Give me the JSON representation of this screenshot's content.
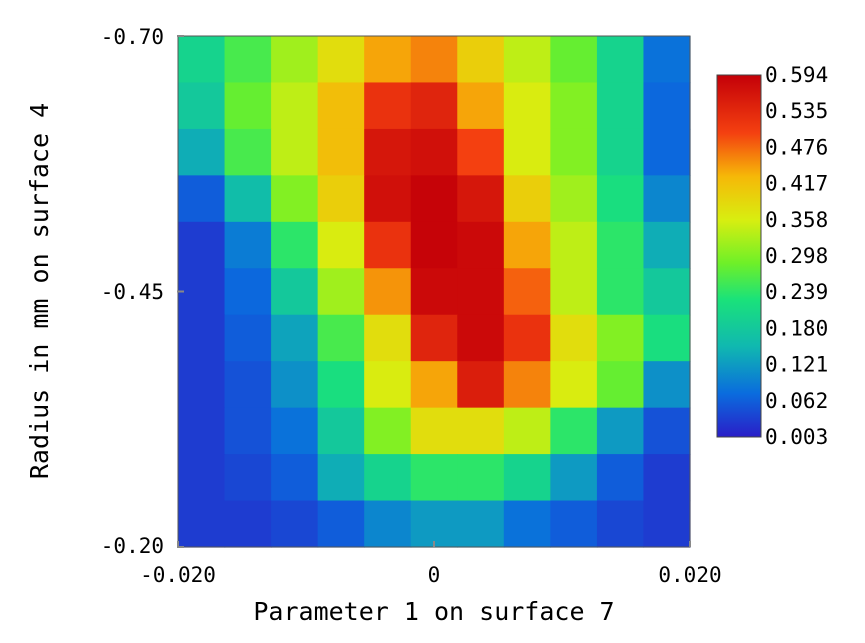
{
  "chart_data": {
    "type": "heatmap",
    "title": "",
    "xlabel": "Parameter 1 on surface 7",
    "ylabel": "Radius in mm on surface 4",
    "x_tick_labels": [
      "-0.020",
      "0",
      "0.020"
    ],
    "y_tick_labels": [
      "-0.70",
      "-0.45",
      "-0.20"
    ],
    "xlim": [
      -0.02,
      0.02
    ],
    "ylim": [
      -0.7,
      -0.2
    ],
    "colorbar_labels": [
      "0.594",
      "0.535",
      "0.476",
      "0.417",
      "0.358",
      "0.298",
      "0.239",
      "0.180",
      "0.121",
      "0.062",
      "0.003"
    ],
    "colorbar_range": [
      0.003,
      0.594
    ],
    "colormap": "rainbow (blue-green-yellow-red)",
    "legend_position": "right",
    "grid": false,
    "rows": 11,
    "cols": 11,
    "values": [
      [
        0.2,
        0.26,
        0.32,
        0.38,
        0.44,
        0.46,
        0.4,
        0.34,
        0.28,
        0.2,
        0.08
      ],
      [
        0.18,
        0.28,
        0.34,
        0.42,
        0.52,
        0.54,
        0.44,
        0.36,
        0.3,
        0.2,
        0.07
      ],
      [
        0.14,
        0.26,
        0.34,
        0.42,
        0.56,
        0.57,
        0.5,
        0.36,
        0.3,
        0.2,
        0.07
      ],
      [
        0.06,
        0.16,
        0.3,
        0.4,
        0.57,
        0.59,
        0.56,
        0.4,
        0.32,
        0.22,
        0.1
      ],
      [
        0.03,
        0.09,
        0.24,
        0.36,
        0.52,
        0.59,
        0.58,
        0.44,
        0.34,
        0.24,
        0.14
      ],
      [
        0.03,
        0.07,
        0.18,
        0.32,
        0.45,
        0.58,
        0.58,
        0.48,
        0.34,
        0.24,
        0.18
      ],
      [
        0.03,
        0.06,
        0.13,
        0.26,
        0.38,
        0.54,
        0.58,
        0.52,
        0.38,
        0.3,
        0.22
      ],
      [
        0.03,
        0.05,
        0.11,
        0.22,
        0.36,
        0.44,
        0.55,
        0.46,
        0.36,
        0.28,
        0.11
      ],
      [
        0.03,
        0.05,
        0.08,
        0.18,
        0.3,
        0.38,
        0.38,
        0.34,
        0.24,
        0.12,
        0.05
      ],
      [
        0.03,
        0.04,
        0.06,
        0.14,
        0.2,
        0.24,
        0.24,
        0.2,
        0.12,
        0.06,
        0.03
      ],
      [
        0.03,
        0.03,
        0.04,
        0.06,
        0.1,
        0.12,
        0.12,
        0.08,
        0.06,
        0.04,
        0.03
      ]
    ]
  }
}
